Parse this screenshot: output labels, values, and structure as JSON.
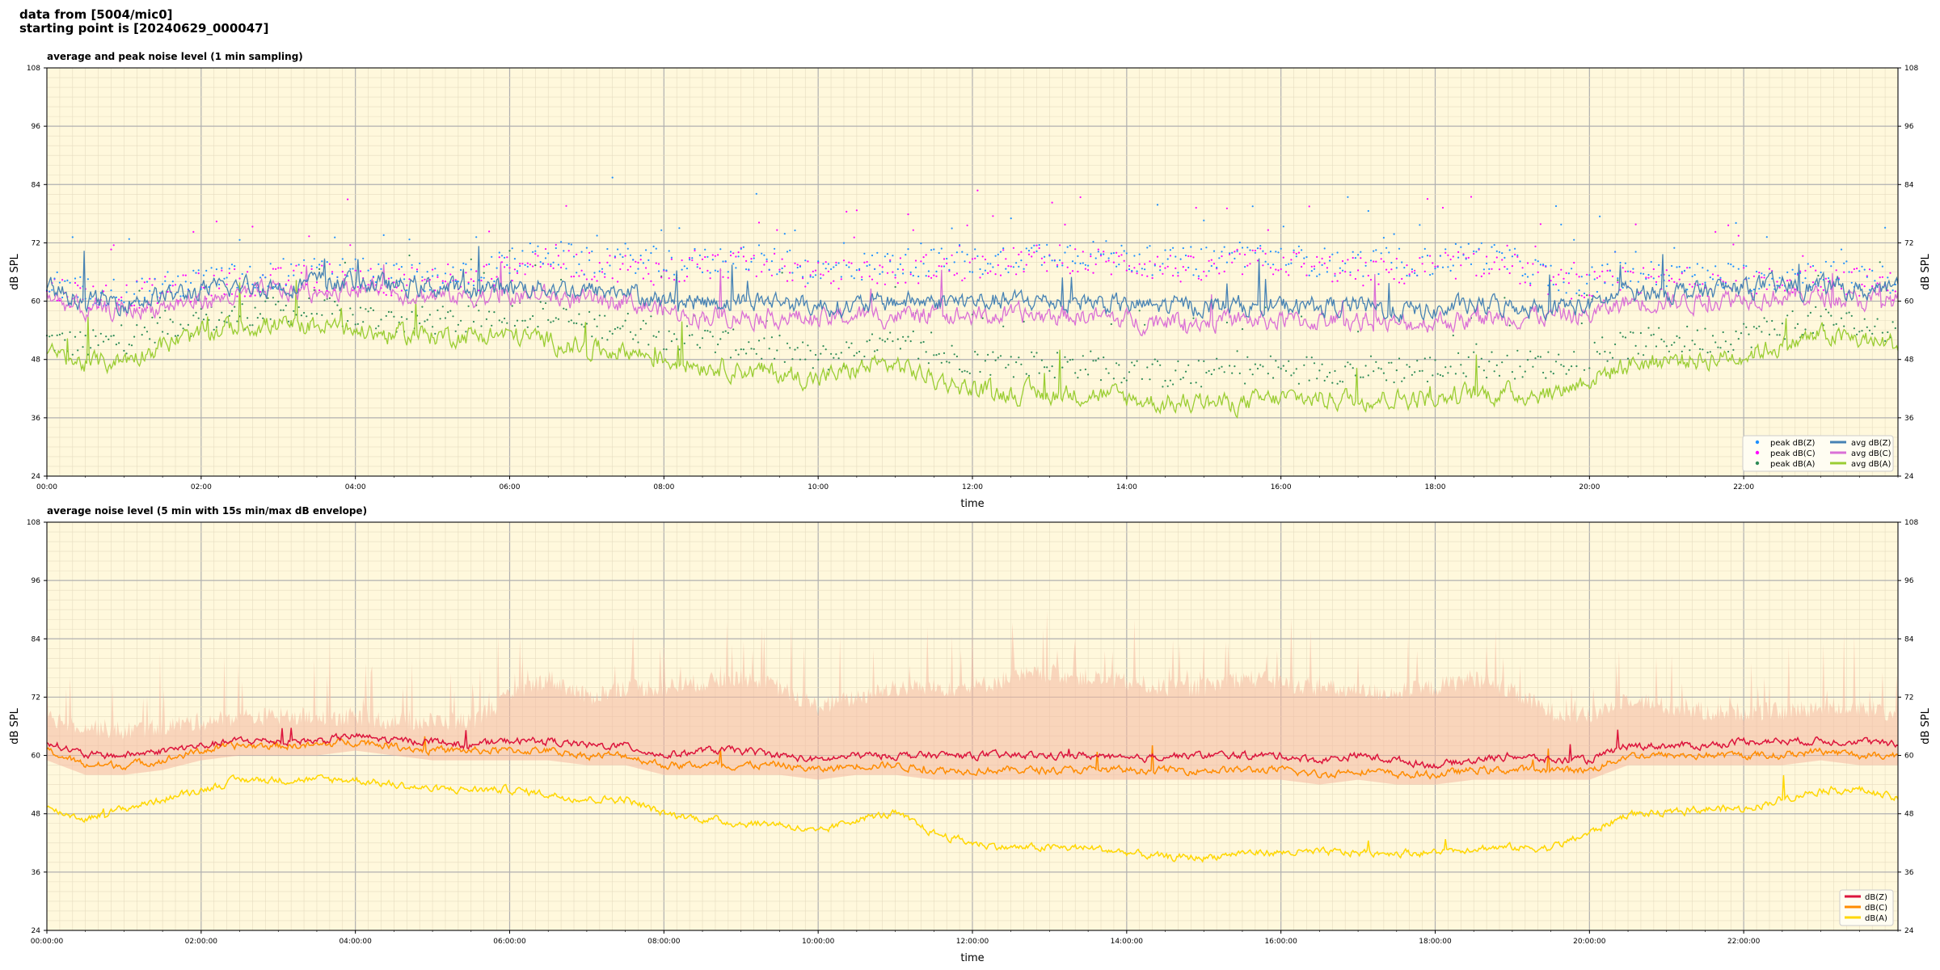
{
  "header": {
    "line1": "data from [5004/mic0]",
    "line2": "starting point is [20240629_000047]"
  },
  "colors": {
    "background": "#fff8dc",
    "peak_z": "#1e90ff",
    "peak_c": "#ff00ff",
    "peak_a": "#2e8b57",
    "avg_z": "#4682b4",
    "avg_c": "#da70d6",
    "avg_a": "#9acd32",
    "dbz": "#dc143c",
    "dbc": "#ff8c00",
    "dba": "#ffd700",
    "envelope": "#f4b8a0"
  },
  "chart_data": [
    {
      "type": "line",
      "title": "average and peak noise level (1 min sampling)",
      "xlabel": "time",
      "ylabel": "dB SPL",
      "xlim": [
        0,
        24
      ],
      "ylim": [
        24,
        108
      ],
      "yticks": [
        "24",
        "36",
        "48",
        "60",
        "72",
        "84",
        "96",
        "108"
      ],
      "xticks": [
        "00:00",
        "02:00",
        "04:00",
        "06:00",
        "08:00",
        "10:00",
        "12:00",
        "14:00",
        "16:00",
        "18:00",
        "20:00",
        "22:00"
      ],
      "grid": true,
      "legend_position": "bottom-right",
      "legend": [
        "peak dB(Z)",
        "peak dB(C)",
        "peak dB(A)",
        "avg dB(Z)",
        "avg dB(C)",
        "avg dB(A)"
      ],
      "x_hours": [
        0,
        0.5,
        1,
        1.5,
        2,
        2.5,
        3,
        3.5,
        4,
        4.5,
        5,
        5.5,
        6,
        6.5,
        7,
        7.5,
        8,
        8.5,
        9,
        9.5,
        10,
        10.5,
        11,
        11.5,
        12,
        12.5,
        13,
        13.5,
        14,
        14.5,
        15,
        15.5,
        16,
        16.5,
        17,
        17.5,
        18,
        18.5,
        19,
        19.5,
        20,
        20.5,
        21,
        21.5,
        22,
        22.5,
        23,
        23.5,
        24
      ],
      "series": [
        {
          "name": "avg dB(Z)",
          "values": [
            63,
            60,
            60,
            61,
            62,
            63,
            63,
            64,
            64,
            63,
            63,
            62,
            63,
            63,
            62,
            62,
            60,
            60,
            60,
            60,
            59,
            59,
            60,
            60,
            60,
            60,
            60,
            60,
            59,
            59,
            59,
            59,
            59,
            59,
            59,
            58,
            58,
            59,
            59,
            59,
            59,
            62,
            62,
            62,
            63,
            63,
            63,
            62,
            62
          ]
        },
        {
          "name": "avg dB(C)",
          "values": [
            61,
            58,
            58,
            59,
            60,
            61,
            62,
            62,
            63,
            62,
            61,
            61,
            61,
            61,
            60,
            60,
            58,
            57,
            57,
            57,
            56,
            57,
            57,
            57,
            57,
            57,
            57,
            57,
            56,
            56,
            56,
            56,
            56,
            56,
            56,
            55,
            56,
            56,
            57,
            57,
            57,
            60,
            60,
            60,
            61,
            61,
            61,
            60,
            60
          ]
        },
        {
          "name": "avg dB(A)",
          "values": [
            49,
            47,
            48,
            51,
            53,
            55,
            55,
            55,
            54,
            53,
            53,
            53,
            53,
            52,
            50,
            50,
            48,
            47,
            46,
            45,
            44,
            46,
            47,
            44,
            42,
            41,
            41,
            41,
            40,
            39,
            39,
            39,
            40,
            40,
            40,
            40,
            40,
            41,
            41,
            41,
            44,
            47,
            48,
            48,
            49,
            51,
            53,
            52,
            51
          ]
        },
        {
          "name": "peak dB(Z)",
          "values": [
            64,
            62,
            62,
            63,
            64,
            65,
            65,
            66,
            66,
            65,
            65,
            65,
            68,
            70,
            68,
            69,
            68,
            68,
            69,
            68,
            66,
            67,
            68,
            68,
            68,
            69,
            70,
            70,
            69,
            68,
            68,
            70,
            69,
            68,
            68,
            68,
            68,
            70,
            68,
            65,
            64,
            66,
            65,
            65,
            65,
            65,
            66,
            65,
            64
          ]
        },
        {
          "name": "peak dB(C)",
          "values": [
            63,
            61,
            61,
            62,
            63,
            64,
            64,
            65,
            65,
            64,
            64,
            64,
            67,
            69,
            67,
            67,
            66,
            67,
            68,
            67,
            65,
            66,
            66,
            67,
            67,
            68,
            69,
            68,
            68,
            67,
            66,
            68,
            68,
            67,
            66,
            66,
            67,
            68,
            67,
            64,
            63,
            64,
            64,
            64,
            64,
            64,
            65,
            64,
            63
          ]
        },
        {
          "name": "peak dB(A)",
          "values": [
            52,
            51,
            52,
            55,
            56,
            57,
            58,
            58,
            57,
            56,
            56,
            56,
            58,
            57,
            55,
            55,
            53,
            52,
            51,
            50,
            48,
            50,
            51,
            49,
            48,
            47,
            47,
            47,
            46,
            45,
            45,
            46,
            46,
            46,
            46,
            46,
            46,
            47,
            47,
            47,
            49,
            51,
            52,
            52,
            53,
            55,
            56,
            55,
            54
          ]
        }
      ]
    },
    {
      "type": "line",
      "title": "average noise level (5 min with 15s min/max dB envelope)",
      "xlabel": "time",
      "ylabel": "dB SPL",
      "xlim": [
        0,
        24
      ],
      "ylim": [
        24,
        108
      ],
      "yticks": [
        "24",
        "36",
        "48",
        "60",
        "72",
        "84",
        "96",
        "108"
      ],
      "xticks": [
        "00:00:00",
        "02:00:00",
        "04:00:00",
        "06:00:00",
        "08:00:00",
        "10:00:00",
        "12:00:00",
        "14:00:00",
        "16:00:00",
        "18:00:00",
        "20:00:00",
        "22:00:00"
      ],
      "grid": true,
      "legend_position": "bottom-right",
      "legend": [
        "dB(Z)",
        "dB(C)",
        "dB(A)"
      ],
      "x_hours": [
        0,
        0.5,
        1,
        1.5,
        2,
        2.5,
        3,
        3.5,
        4,
        4.5,
        5,
        5.5,
        6,
        6.5,
        7,
        7.5,
        8,
        8.5,
        9,
        9.5,
        10,
        10.5,
        11,
        11.5,
        12,
        12.5,
        13,
        13.5,
        14,
        14.5,
        15,
        15.5,
        16,
        16.5,
        17,
        17.5,
        18,
        18.5,
        19,
        19.5,
        20,
        20.5,
        21,
        21.5,
        22,
        22.5,
        23,
        23.5,
        24
      ],
      "series": [
        {
          "name": "dB(Z)",
          "values": [
            63,
            60,
            60,
            61,
            62,
            63,
            63,
            63,
            64,
            63,
            63,
            62,
            63,
            63,
            62,
            62,
            60,
            61,
            61,
            60,
            59,
            60,
            60,
            60,
            60,
            60,
            60,
            60,
            59,
            60,
            60,
            60,
            60,
            59,
            60,
            59,
            58,
            59,
            60,
            59,
            59,
            62,
            62,
            62,
            63,
            63,
            63,
            63,
            62
          ]
        },
        {
          "name": "dB(C)",
          "values": [
            61,
            58,
            58,
            59,
            61,
            62,
            62,
            62,
            63,
            62,
            61,
            61,
            61,
            61,
            60,
            60,
            58,
            58,
            58,
            58,
            57,
            58,
            58,
            57,
            57,
            57,
            57,
            57,
            57,
            57,
            57,
            57,
            57,
            56,
            57,
            56,
            56,
            57,
            57,
            57,
            57,
            60,
            60,
            60,
            60,
            60,
            61,
            60,
            60
          ]
        },
        {
          "name": "dB(A)",
          "values": [
            49,
            47,
            49,
            51,
            53,
            55,
            55,
            55,
            55,
            54,
            53,
            53,
            53,
            52,
            51,
            51,
            48,
            47,
            46,
            46,
            44,
            47,
            48,
            44,
            42,
            41,
            41,
            41,
            40,
            39,
            39,
            40,
            40,
            40,
            40,
            40,
            40,
            41,
            41,
            41,
            44,
            48,
            48,
            49,
            49,
            51,
            53,
            53,
            51
          ]
        },
        {
          "name": "envelope max",
          "values": [
            68,
            66,
            65,
            66,
            67,
            68,
            68,
            68,
            68,
            67,
            67,
            67,
            72,
            76,
            72,
            74,
            74,
            75,
            76,
            74,
            70,
            72,
            74,
            74,
            74,
            76,
            77,
            76,
            75,
            74,
            74,
            76,
            75,
            74,
            73,
            73,
            74,
            76,
            73,
            69,
            68,
            72,
            70,
            69,
            69,
            69,
            70,
            70,
            68
          ]
        }
      ]
    }
  ]
}
